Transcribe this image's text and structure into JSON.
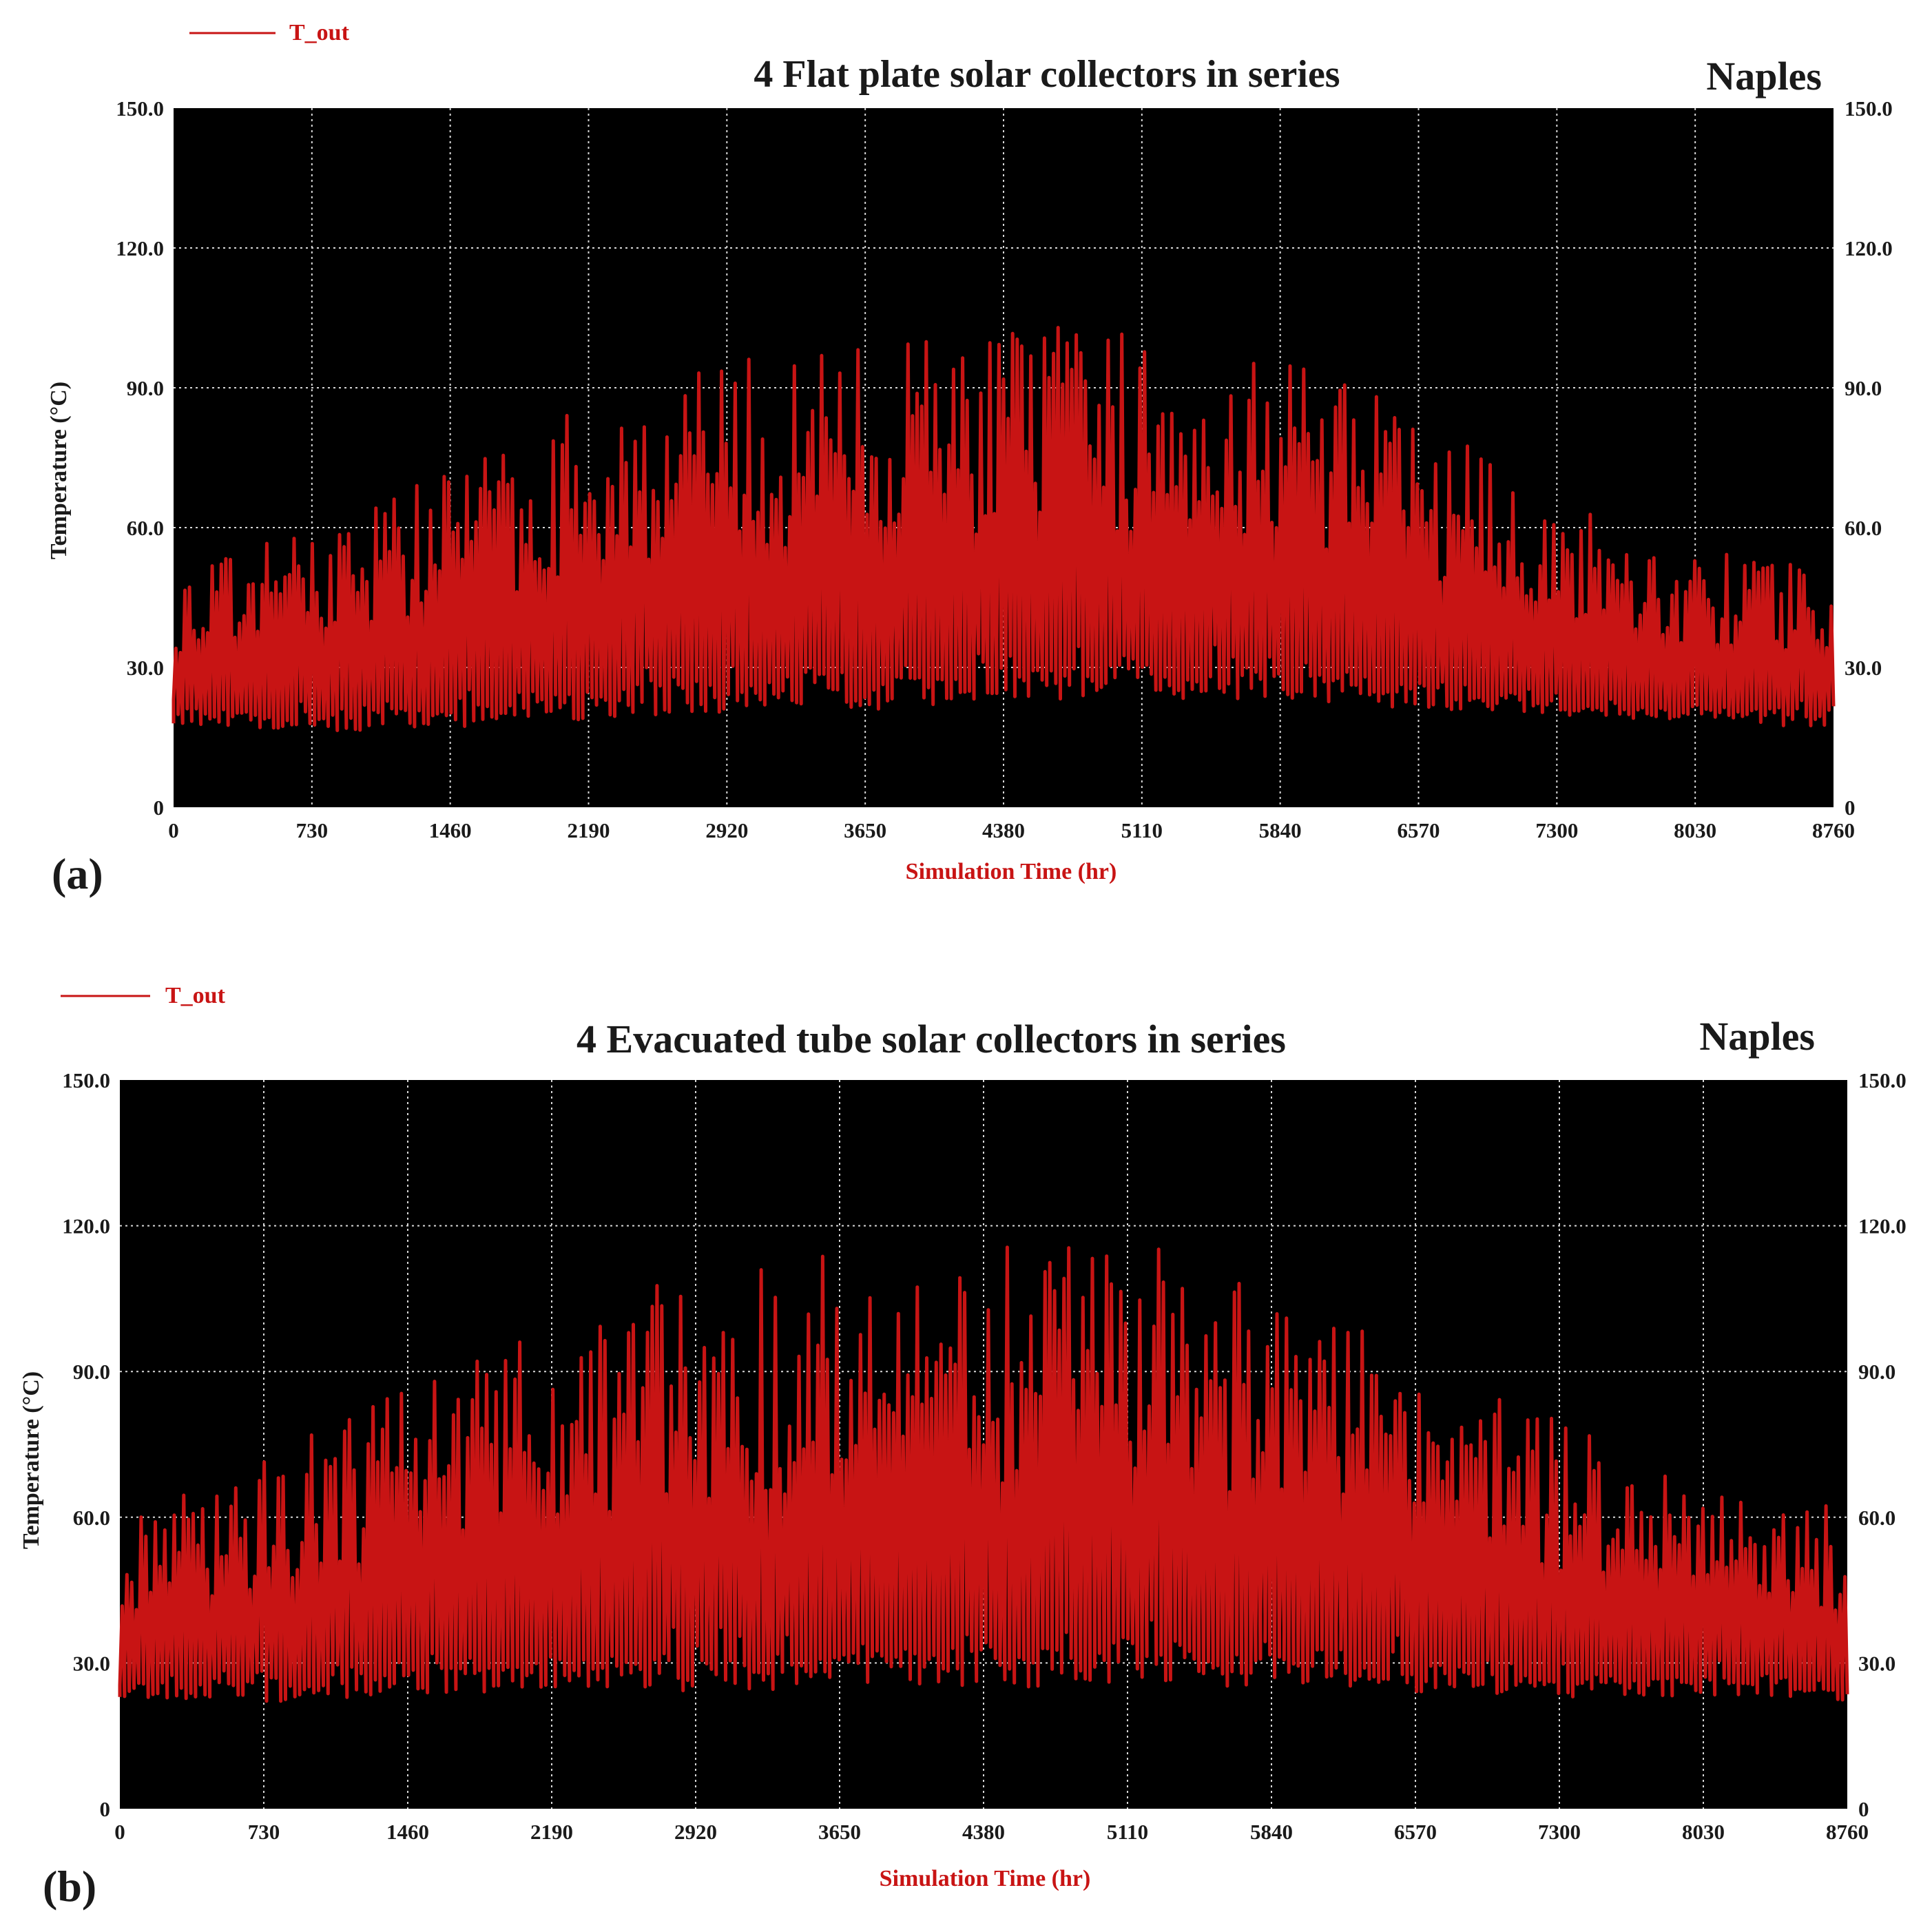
{
  "chart_data": [
    {
      "type": "line",
      "panel_label": "(a)",
      "title": "4  Flat plate  solar collectors in series",
      "location": "Naples",
      "legend": {
        "label": "T_out",
        "position": "top-left"
      },
      "xlabel": "Simulation Time (hr)",
      "ylabel": "Temperature (°C)",
      "xlim": [
        0,
        8760
      ],
      "ylim": [
        0,
        150
      ],
      "x_ticks": [
        "0",
        "730",
        "1460",
        "2190",
        "2920",
        "3650",
        "4380",
        "5110",
        "5840",
        "6570",
        "7300",
        "8030",
        "8760"
      ],
      "y_ticks_left": [
        "0",
        "30.0",
        "60.0",
        "90.0",
        "120.0",
        "150.0"
      ],
      "y_ticks_right": [
        "0",
        "30.0",
        "60.0",
        "90.0",
        "120.0",
        "150.0"
      ],
      "grid": true,
      "series": [
        {
          "name": "T_out",
          "color": "#c81414",
          "base_x": [
            0,
            730,
            1460,
            2190,
            2920,
            3650,
            4380,
            5110,
            5840,
            6570,
            7300,
            8030,
            8760
          ],
          "base_y": [
            18,
            16,
            17,
            19,
            20,
            21,
            22,
            23,
            23,
            21,
            19,
            18,
            17
          ],
          "peak_x": [
            0,
            730,
            1460,
            2190,
            2920,
            3650,
            4380,
            5110,
            5840,
            6570,
            7300,
            8030,
            8760
          ],
          "peak_y": [
            50,
            62,
            74,
            88,
            96,
            100,
            104,
            103,
            100,
            84,
            66,
            55,
            52
          ]
        }
      ]
    },
    {
      "type": "line",
      "panel_label": "(b)",
      "title": "4 Evacuated tube solar collectors in series",
      "location": "Naples",
      "legend": {
        "label": "T_out",
        "position": "top-left"
      },
      "xlabel": "Simulation Time (hr)",
      "ylabel": "Temperature (°C)",
      "xlim": [
        0,
        8760
      ],
      "ylim": [
        0,
        150
      ],
      "x_ticks": [
        "0",
        "730",
        "1460",
        "2190",
        "2920",
        "3650",
        "4380",
        "5110",
        "5840",
        "6570",
        "7300",
        "8030",
        "8760"
      ],
      "y_ticks_left": [
        "0",
        "30.0",
        "60.0",
        "90.0",
        "120.0",
        "150.0"
      ],
      "y_ticks_right": [
        "0",
        "30.0",
        "60.0",
        "90.0",
        "120.0",
        "150.0"
      ],
      "grid": true,
      "series": [
        {
          "name": "T_out",
          "color": "#c81414",
          "base_x": [
            0,
            730,
            1460,
            2190,
            2920,
            3650,
            4380,
            5110,
            5840,
            6570,
            7300,
            8030,
            8760
          ],
          "base_y": [
            23,
            22,
            23,
            24,
            24,
            24,
            25,
            25,
            25,
            24,
            23,
            23,
            22
          ],
          "peak_x": [
            0,
            730,
            1460,
            2190,
            2920,
            3650,
            4380,
            5110,
            5840,
            6570,
            7300,
            8030,
            8760
          ],
          "peak_y": [
            60,
            72,
            90,
            102,
            112,
            115,
            118,
            117,
            108,
            94,
            80,
            66,
            62
          ]
        }
      ]
    }
  ]
}
